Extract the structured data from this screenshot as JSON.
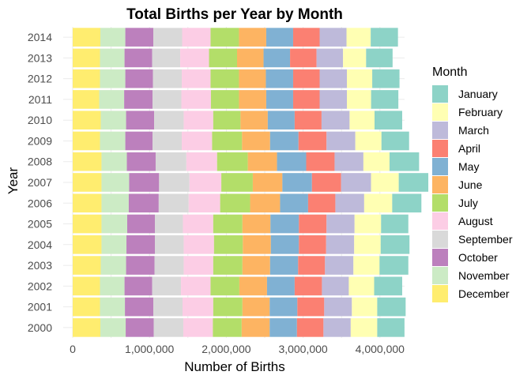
{
  "chart_data": {
    "type": "bar",
    "orientation": "horizontal",
    "stacked": true,
    "title": "Total Births per Year by Month",
    "xlabel": "Number of Births",
    "ylabel": "Year",
    "xlim": [
      0,
      4500000
    ],
    "x_ticks": [
      0,
      1000000,
      2000000,
      3000000,
      4000000
    ],
    "x_tick_labels": [
      "0",
      "1,000,000",
      "2,000,000",
      "3,000,000",
      "4,000,000"
    ],
    "grid": true,
    "legend_position": "right",
    "legend_title": "Month",
    "categories": [
      "2014",
      "2013",
      "2012",
      "2011",
      "2010",
      "2009",
      "2008",
      "2007",
      "2006",
      "2005",
      "2004",
      "2003",
      "2002",
      "2001",
      "2000"
    ],
    "legend_order": [
      "January",
      "February",
      "March",
      "April",
      "May",
      "June",
      "July",
      "August",
      "September",
      "October",
      "November",
      "December"
    ],
    "stack_order": [
      "December",
      "November",
      "October",
      "September",
      "August",
      "July",
      "June",
      "May",
      "April",
      "March",
      "February",
      "January"
    ],
    "colors": {
      "January": "#8dd3c7",
      "February": "#ffffb3",
      "March": "#bebada",
      "April": "#fb8072",
      "May": "#80b1d3",
      "June": "#fdb462",
      "July": "#b3de69",
      "August": "#fccde5",
      "September": "#d9d9d9",
      "October": "#bc80bd",
      "November": "#ccebc5",
      "December": "#ffed6f"
    },
    "series": [
      {
        "name": "December",
        "values": [
          360000,
          355000,
          355000,
          345000,
          365000,
          355000,
          375000,
          375000,
          375000,
          375000,
          375000,
          365000,
          355000,
          355000,
          360000
        ]
      },
      {
        "name": "November",
        "values": [
          325000,
          320000,
          330000,
          325000,
          330000,
          330000,
          330000,
          360000,
          355000,
          335000,
          325000,
          330000,
          320000,
          325000,
          330000
        ]
      },
      {
        "name": "October",
        "values": [
          365000,
          360000,
          360000,
          370000,
          365000,
          355000,
          375000,
          390000,
          390000,
          360000,
          370000,
          370000,
          360000,
          370000,
          365000
        ]
      },
      {
        "name": "September",
        "values": [
          375000,
          365000,
          375000,
          375000,
          385000,
          380000,
          400000,
          395000,
          390000,
          365000,
          375000,
          380000,
          375000,
          380000,
          385000
        ]
      },
      {
        "name": "August",
        "values": [
          370000,
          375000,
          375000,
          385000,
          385000,
          395000,
          400000,
          415000,
          410000,
          395000,
          395000,
          385000,
          385000,
          400000,
          385000
        ]
      },
      {
        "name": "July",
        "values": [
          370000,
          365000,
          370000,
          365000,
          355000,
          390000,
          400000,
          410000,
          390000,
          380000,
          375000,
          380000,
          375000,
          380000,
          375000
        ]
      },
      {
        "name": "June",
        "values": [
          355000,
          345000,
          350000,
          355000,
          355000,
          365000,
          380000,
          385000,
          390000,
          365000,
          365000,
          360000,
          360000,
          355000,
          365000
        ]
      },
      {
        "name": "May",
        "values": [
          350000,
          345000,
          355000,
          350000,
          350000,
          370000,
          380000,
          385000,
          365000,
          370000,
          365000,
          365000,
          360000,
          360000,
          355000
        ]
      },
      {
        "name": "April",
        "values": [
          345000,
          345000,
          345000,
          345000,
          350000,
          365000,
          370000,
          380000,
          355000,
          360000,
          355000,
          350000,
          355000,
          350000,
          345000
        ]
      },
      {
        "name": "March",
        "values": [
          350000,
          345000,
          355000,
          355000,
          365000,
          375000,
          375000,
          390000,
          375000,
          365000,
          365000,
          370000,
          350000,
          360000,
          355000
        ]
      },
      {
        "name": "February",
        "values": [
          315000,
          300000,
          330000,
          315000,
          325000,
          340000,
          340000,
          360000,
          365000,
          345000,
          345000,
          340000,
          330000,
          330000,
          345000
        ]
      },
      {
        "name": "January",
        "values": [
          355000,
          345000,
          355000,
          355000,
          360000,
          360000,
          385000,
          385000,
          380000,
          355000,
          375000,
          375000,
          365000,
          370000,
          355000
        ]
      }
    ]
  }
}
